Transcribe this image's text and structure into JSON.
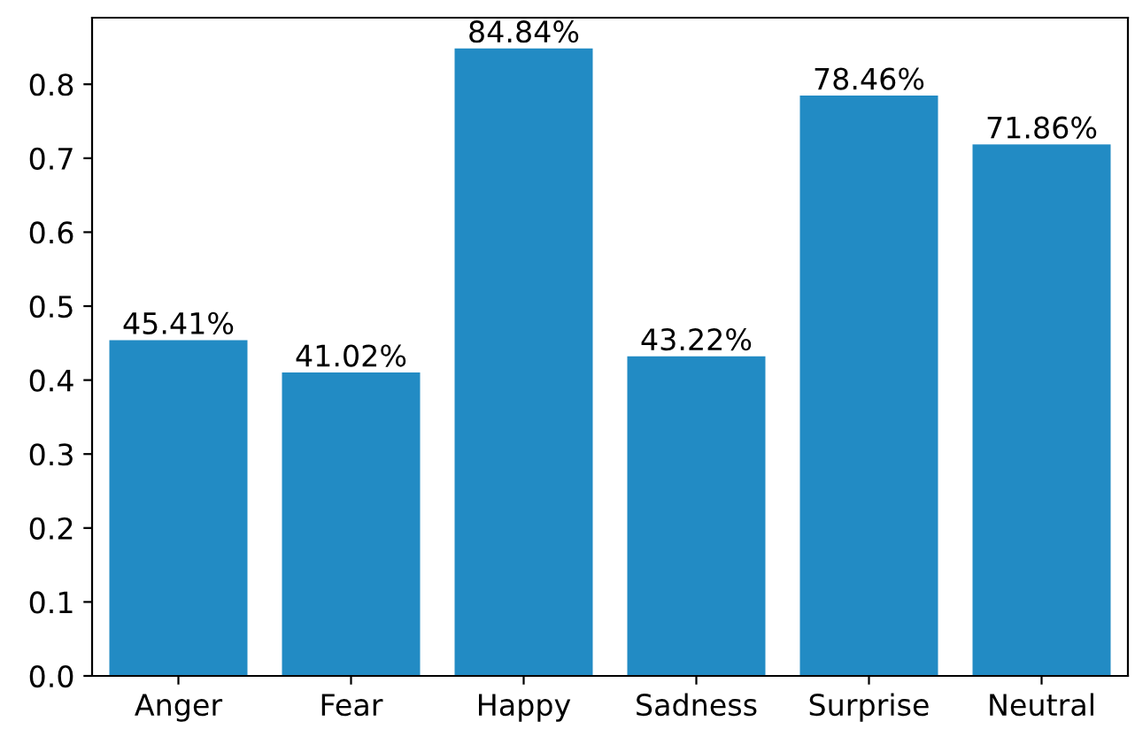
{
  "chart_data": {
    "type": "bar",
    "categories": [
      "Anger",
      "Fear",
      "Happy",
      "Sadness",
      "Surprise",
      "Neutral"
    ],
    "values": [
      0.4541,
      0.4102,
      0.8484,
      0.4322,
      0.7846,
      0.7186
    ],
    "value_labels": [
      "45.41%",
      "41.02%",
      "84.84%",
      "43.22%",
      "78.46%",
      "71.86%"
    ],
    "color": "#228bc4",
    "ylim": [
      0,
      0.89
    ],
    "yticks": [
      {
        "value": 0,
        "label": "0.0"
      },
      0.1,
      0.2,
      0.3,
      0.4,
      0.5,
      0.6,
      0.7,
      0.8
    ],
    "grid": false,
    "legend": false
  }
}
